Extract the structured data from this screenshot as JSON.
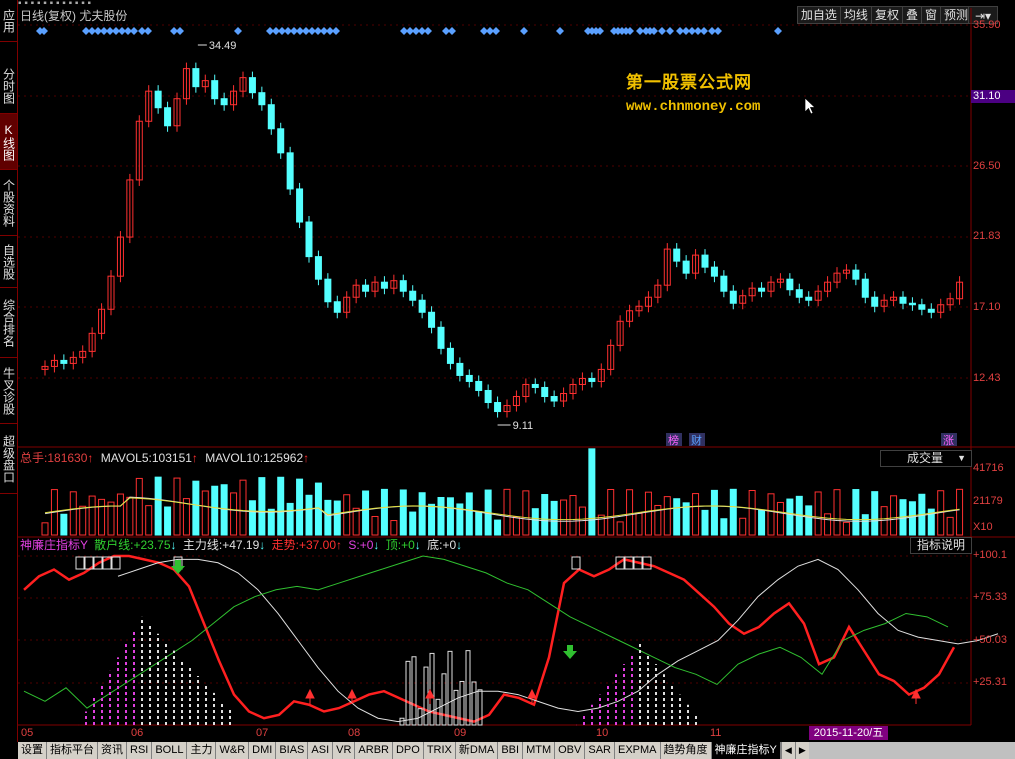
{
  "left_bar": [
    {
      "label": "应用"
    },
    {
      "label": "分时图"
    },
    {
      "label": "K线图",
      "active": true
    },
    {
      "label": "个股资料"
    },
    {
      "label": "自选股"
    },
    {
      "label": "综合排名"
    },
    {
      "label": "牛叉诊股"
    },
    {
      "label": "超级盘口"
    }
  ],
  "title": "日线(复权) 尤夫股份",
  "toolbar": [
    "加自选",
    "均线",
    "复权",
    "叠",
    "窗",
    "预测"
  ],
  "watermark": {
    "line1": "第一股票公式网",
    "line2": "www.chnmoney.com"
  },
  "price_axis": [
    "35.90",
    "31.10",
    "26.50",
    "21.83",
    "17.10",
    "12.43"
  ],
  "price_axis_highlight": "31.10",
  "price_markers": {
    "high": "34.49",
    "low": "9.11"
  },
  "events": {
    "e1": "榜",
    "e2": "财",
    "e3": "涨"
  },
  "volume": {
    "total_label": "总手:",
    "total_value": "181630",
    "ma5_label": "MAVOL5:",
    "ma5_value": "103151",
    "ma10_label": "MAVOL10:",
    "ma10_value": "125962",
    "dropdown": "成交量",
    "axis": [
      "41716",
      "21179",
      "X10"
    ]
  },
  "indicator": {
    "name": "神廉庄指标Y",
    "sanhu_label": "散户线:",
    "sanhu_value": "+23.75",
    "zhuli_label": "主力线:",
    "zhuli_value": "+47.19",
    "zoushi_label": "走势:",
    "zoushi_value": "+37.00",
    "s_label": "S:",
    "s_value": "+0",
    "ding_label": "顶:",
    "ding_value": "+0",
    "di_label": "底:",
    "di_value": "+0",
    "button": "指标说明",
    "axis": [
      "+100.1",
      "+75.33",
      "+50.03",
      "+25.31"
    ]
  },
  "x_axis": [
    "05",
    "06",
    "07",
    "08",
    "09",
    "10",
    "11"
  ],
  "date_badge": "2015-11-20/五",
  "tabs": [
    "设置",
    "指标平台",
    "资讯",
    "RSI",
    "BOLL",
    "主力",
    "W&R",
    "DMI",
    "BIAS",
    "ASI",
    "VR",
    "ARBR",
    "DPO",
    "TRIX",
    "新DMA",
    "BBI",
    "MTM",
    "OBV",
    "SAR",
    "EXPMA",
    "趋势角度",
    "神廉庄指标Y"
  ],
  "active_tab": "神廉庄指标Y",
  "colors": {
    "up": "#ff3030",
    "down": "#54ffff",
    "axis": "#e04040",
    "grid": "#800000",
    "highlight": "#4b0082",
    "brand": "#f0c000"
  },
  "icons": [
    "right-arrow-icon",
    "dropdown-icon",
    "tab-left-icon",
    "tab-right-icon"
  ]
}
